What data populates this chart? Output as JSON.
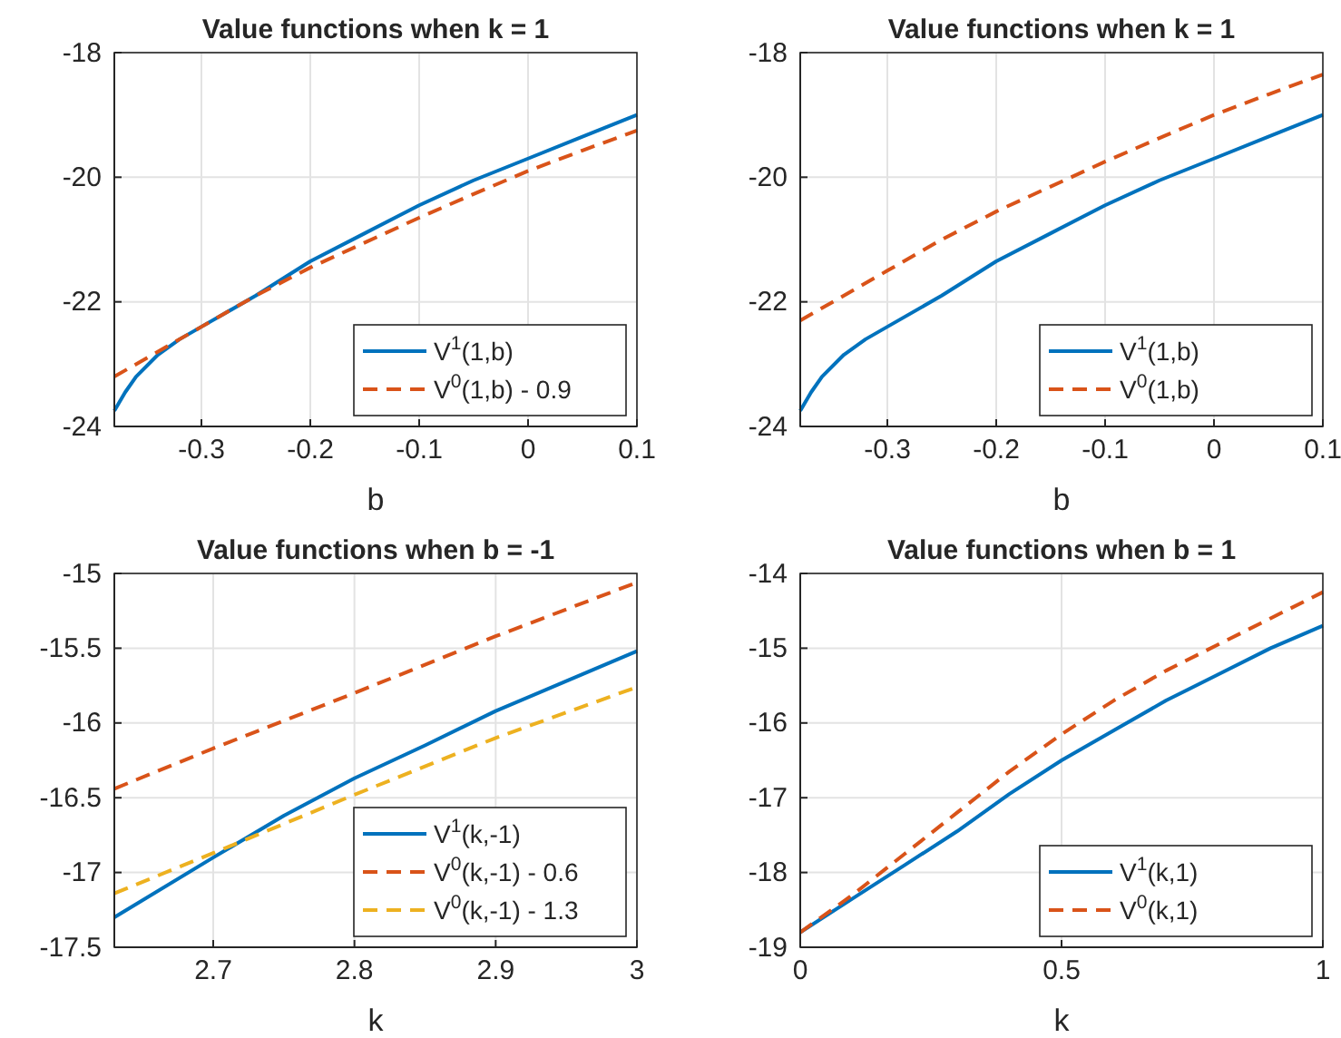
{
  "chart_data": [
    {
      "type": "line",
      "title": "Value functions when k = 1",
      "xlabel": "b",
      "xlim": [
        -0.38,
        0.1
      ],
      "xticks": [
        -0.3,
        -0.2,
        -0.1,
        0,
        0.1
      ],
      "ylim": [
        -24,
        -18
      ],
      "yticks": [
        -24,
        -22,
        -20,
        -18
      ],
      "grid": true,
      "legend": "bottom right",
      "series": [
        {
          "name": "V$^{1}$(1,b)",
          "color": "#0072bd",
          "line_style": "solid",
          "x": [
            -0.38,
            -0.37,
            -0.36,
            -0.34,
            -0.32,
            -0.3,
            -0.25,
            -0.2,
            -0.15,
            -0.1,
            -0.05,
            0,
            0.05,
            0.1
          ],
          "values": [
            -23.75,
            -23.45,
            -23.2,
            -22.85,
            -22.6,
            -22.4,
            -21.9,
            -21.35,
            -20.9,
            -20.45,
            -20.05,
            -19.7,
            -19.35,
            -19.0
          ]
        },
        {
          "name": "V$^{0}$(1,b) - 0.9",
          "color": "#d95319",
          "line_style": "dashed",
          "x": [
            -0.38,
            -0.35,
            -0.3,
            -0.25,
            -0.2,
            -0.15,
            -0.1,
            -0.05,
            0,
            0.05,
            0.1
          ],
          "values": [
            -23.2,
            -22.9,
            -22.4,
            -21.9,
            -21.45,
            -21.05,
            -20.65,
            -20.27,
            -19.9,
            -19.57,
            -19.25
          ]
        }
      ]
    },
    {
      "type": "line",
      "title": "Value functions when k = 1",
      "xlabel": "b",
      "xlim": [
        -0.38,
        0.1
      ],
      "xticks": [
        -0.3,
        -0.2,
        -0.1,
        0,
        0.1
      ],
      "ylim": [
        -24,
        -18
      ],
      "yticks": [
        -24,
        -22,
        -20,
        -18
      ],
      "grid": true,
      "legend": "bottom right",
      "series": [
        {
          "name": "V$^{1}$(1,b)",
          "color": "#0072bd",
          "line_style": "solid",
          "x": [
            -0.38,
            -0.37,
            -0.36,
            -0.34,
            -0.32,
            -0.3,
            -0.25,
            -0.2,
            -0.15,
            -0.1,
            -0.05,
            0,
            0.05,
            0.1
          ],
          "values": [
            -23.75,
            -23.45,
            -23.2,
            -22.85,
            -22.6,
            -22.4,
            -21.9,
            -21.35,
            -20.9,
            -20.45,
            -20.05,
            -19.7,
            -19.35,
            -19.0
          ]
        },
        {
          "name": "V$^{0}$(1,b)",
          "color": "#d95319",
          "line_style": "dashed",
          "x": [
            -0.38,
            -0.35,
            -0.3,
            -0.25,
            -0.2,
            -0.15,
            -0.1,
            -0.05,
            0,
            0.05,
            0.1
          ],
          "values": [
            -22.3,
            -22.0,
            -21.5,
            -21.0,
            -20.55,
            -20.15,
            -19.75,
            -19.37,
            -19.0,
            -18.67,
            -18.35
          ]
        }
      ]
    },
    {
      "type": "line",
      "title": "Value functions when b = -1",
      "xlabel": "k",
      "xlim": [
        2.63,
        3
      ],
      "xticks": [
        2.7,
        2.8,
        2.9,
        3
      ],
      "ylim": [
        -17.5,
        -15
      ],
      "yticks": [
        -17.5,
        -17,
        -16.5,
        -16,
        -15.5,
        -15
      ],
      "grid": true,
      "legend": "bottom right",
      "series": [
        {
          "name": "V$^{1}$(k,-1)",
          "color": "#0072bd",
          "line_style": "solid",
          "x": [
            2.63,
            2.7,
            2.75,
            2.8,
            2.85,
            2.9,
            2.95,
            3
          ],
          "values": [
            -17.3,
            -16.9,
            -16.62,
            -16.37,
            -16.15,
            -15.92,
            -15.72,
            -15.52
          ]
        },
        {
          "name": "V$^{0}$(k,-1) - 0.6",
          "color": "#d95319",
          "line_style": "dashed",
          "x": [
            2.63,
            2.7,
            2.8,
            2.9,
            3
          ],
          "values": [
            -16.44,
            -16.17,
            -15.8,
            -15.42,
            -15.06
          ]
        },
        {
          "name": "V$^{0}$(k,-1) - 1.3",
          "color": "#edb120",
          "line_style": "dashed",
          "x": [
            2.63,
            2.7,
            2.8,
            2.9,
            3
          ],
          "values": [
            -17.14,
            -16.87,
            -16.48,
            -16.1,
            -15.76
          ]
        }
      ]
    },
    {
      "type": "line",
      "title": "Value functions when b = 1",
      "xlabel": "k",
      "xlim": [
        0,
        1
      ],
      "xticks": [
        0,
        0.5,
        1
      ],
      "ylim": [
        -19,
        -14
      ],
      "yticks": [
        -19,
        -18,
        -17,
        -16,
        -15,
        -14
      ],
      "grid": true,
      "legend": "bottom right",
      "series": [
        {
          "name": "V$^{1}$(k,1)",
          "color": "#0072bd",
          "line_style": "solid",
          "x": [
            0,
            0.1,
            0.2,
            0.3,
            0.4,
            0.5,
            0.6,
            0.7,
            0.8,
            0.9,
            1
          ],
          "values": [
            -18.8,
            -18.35,
            -17.9,
            -17.45,
            -16.95,
            -16.5,
            -16.1,
            -15.7,
            -15.35,
            -15.0,
            -14.7
          ]
        },
        {
          "name": "V$^{0}$(k,1)",
          "color": "#d95319",
          "line_style": "dashed",
          "x": [
            0,
            0.1,
            0.2,
            0.3,
            0.4,
            0.5,
            0.6,
            0.7,
            0.8,
            0.9,
            1
          ],
          "values": [
            -18.8,
            -18.3,
            -17.75,
            -17.2,
            -16.65,
            -16.15,
            -15.7,
            -15.3,
            -14.95,
            -14.6,
            -14.25
          ]
        }
      ]
    }
  ]
}
